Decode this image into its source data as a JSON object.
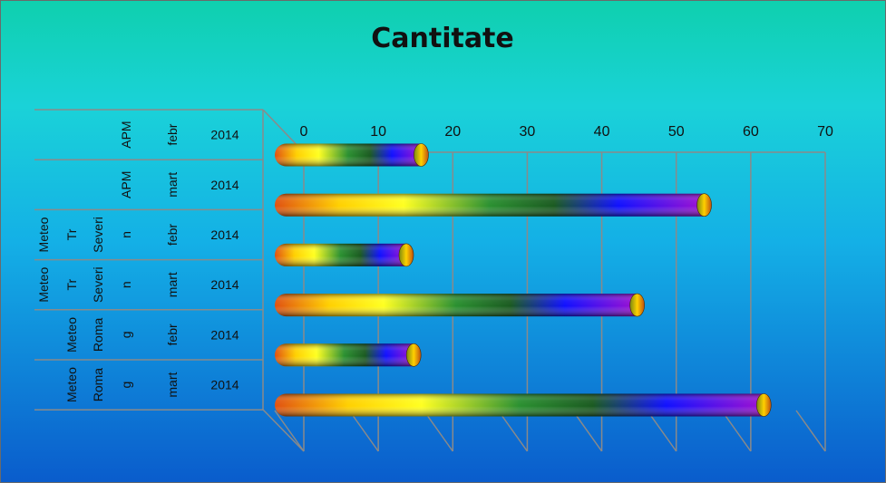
{
  "chart_data": {
    "type": "bar",
    "orientation": "horizontal",
    "title": "Cantitate",
    "xlim": [
      0,
      70
    ],
    "ticks": [
      0,
      10,
      20,
      30,
      40,
      50,
      60,
      70
    ],
    "categories": [
      {
        "labels": [
          "",
          "",
          "",
          "APM",
          "febr",
          "2014"
        ]
      },
      {
        "labels": [
          "",
          "",
          "",
          "APM",
          "mart",
          "2014"
        ]
      },
      {
        "labels": [
          "Meteo",
          "Tr",
          "Severi",
          "n",
          "febr",
          "2014"
        ]
      },
      {
        "labels": [
          "Meteo",
          "Tr",
          "Severi",
          "n",
          "mart",
          "2014"
        ]
      },
      {
        "labels": [
          "",
          "Meteo",
          "Roma",
          "g",
          "febr",
          "2014"
        ]
      },
      {
        "labels": [
          "",
          "Meteo",
          "Roma",
          "g",
          "mart",
          "2014"
        ]
      }
    ],
    "series": [
      {
        "values": [
          16,
          54,
          14,
          45,
          15,
          62
        ]
      }
    ],
    "grid": true,
    "colors": {
      "bg_top": "#0fd0b0",
      "bg_mid": "#1bc8e0",
      "bg_bottom": "#0a5fcf",
      "axis": "#8a8a8a"
    }
  }
}
